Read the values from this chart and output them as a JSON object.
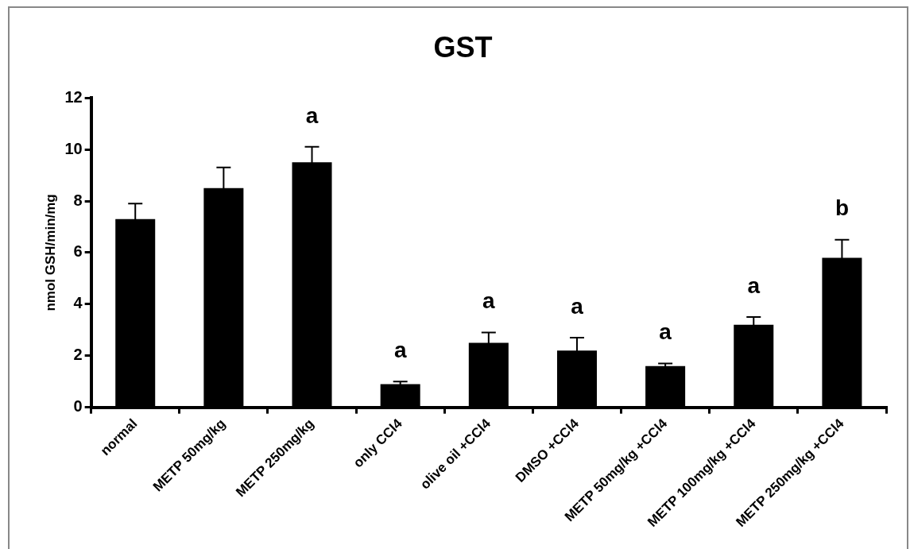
{
  "chart_data": {
    "type": "bar",
    "title": "GST",
    "ylabel": "nmol GSH/min/mg",
    "categories": [
      "normal",
      "METP 50mg/kg",
      "METP 250mg/kg",
      "only CCl4",
      "olive oil +CCl4",
      "DMSO +CCl4",
      "METP 50mg/kg +CCl4",
      "METP 100mg/kg +CCl4",
      "METP 250mg/kg +CCl4"
    ],
    "values": [
      7.3,
      8.5,
      9.5,
      0.9,
      2.5,
      2.2,
      1.6,
      3.2,
      5.8
    ],
    "errors": [
      0.6,
      0.8,
      0.6,
      0.1,
      0.4,
      0.5,
      0.1,
      0.3,
      0.7
    ],
    "color": "#000000",
    "ylim": [
      0,
      12
    ],
    "yticks": [
      0,
      2,
      4,
      6,
      8,
      10,
      12
    ],
    "grid": false,
    "legend": false,
    "annotations": [
      {
        "text": "a",
        "x": "METP 250mg/kg",
        "y": 9.5
      },
      {
        "text": "a",
        "x": "only CCl4",
        "y": 0.9
      },
      {
        "text": "a",
        "x": "olive oil +CCl4",
        "y": 2.5
      },
      {
        "text": "a",
        "x": "DMSO +CCl4",
        "y": 2.2
      },
      {
        "text": "a",
        "x": "METP 50mg/kg +CCl4",
        "y": 1.6
      },
      {
        "text": "a",
        "x": "METP 100mg/kg +CCl4",
        "y": 3.2
      },
      {
        "text": "b",
        "x": "METP 250mg/kg +CCl4",
        "y": 5.8
      }
    ]
  }
}
